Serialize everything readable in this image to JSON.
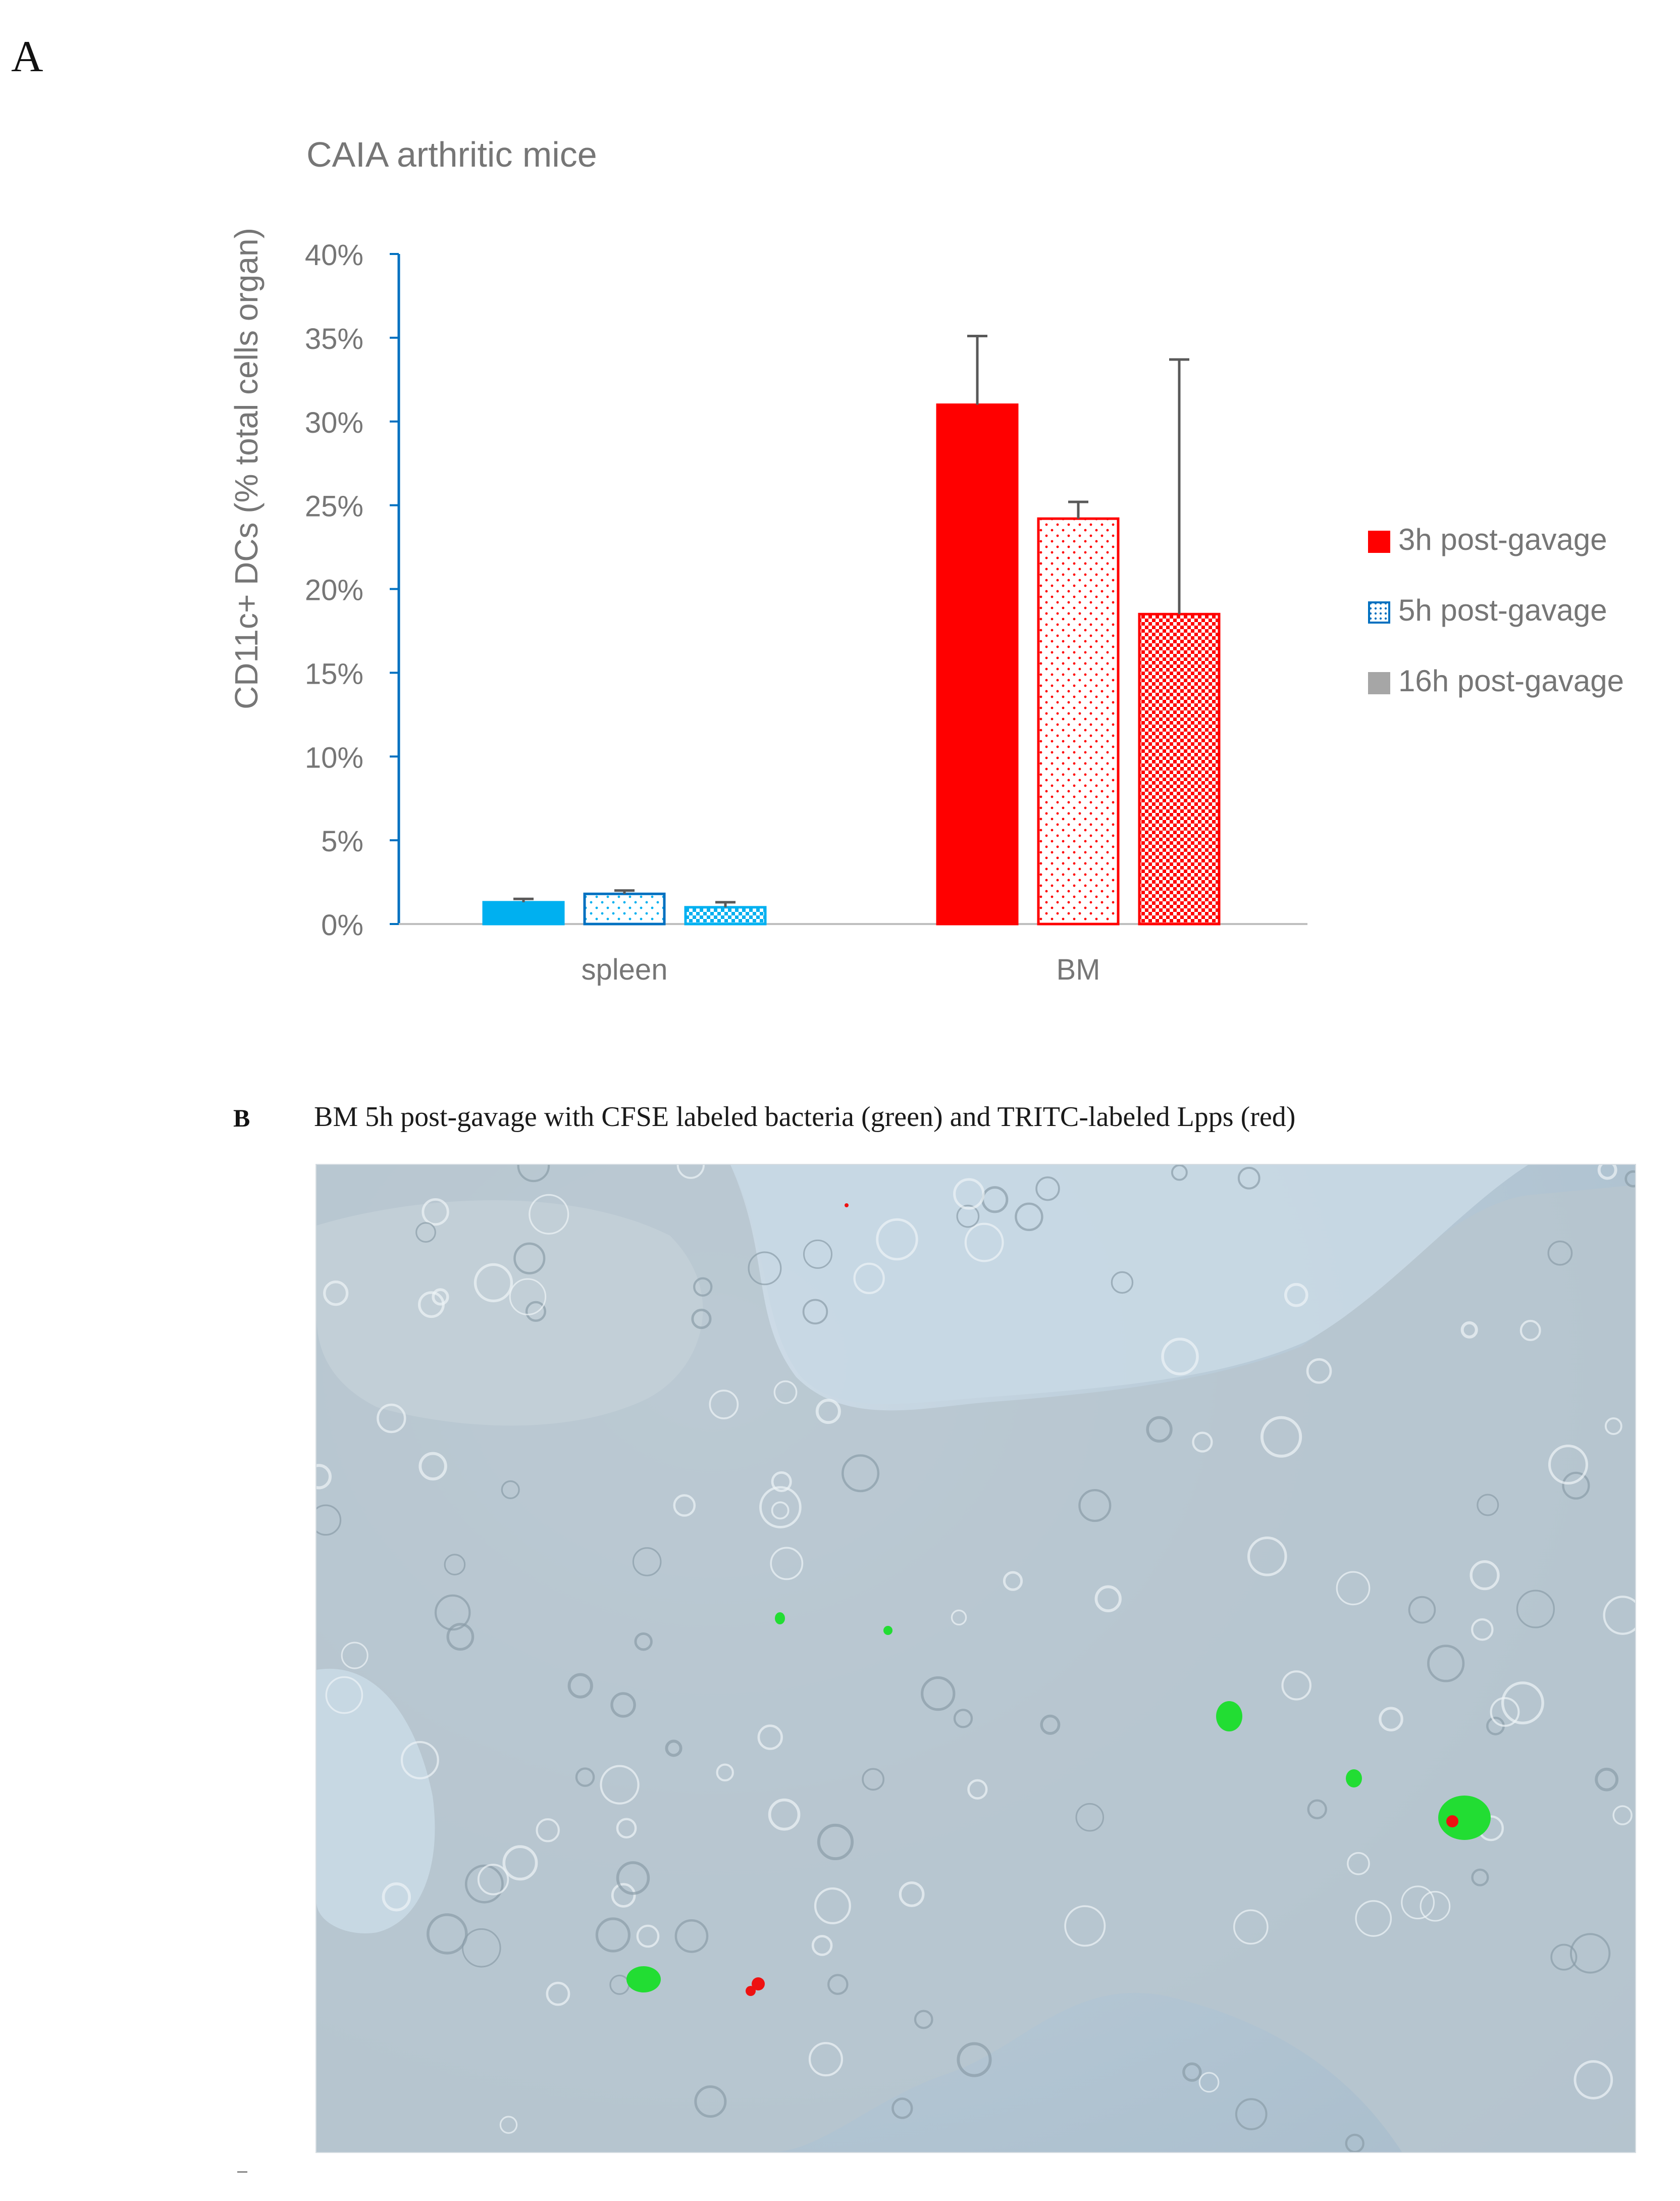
{
  "panel_a": {
    "letter": "A"
  },
  "panel_b": {
    "letter": "B",
    "caption": "BM 5h post-gavage with CFSE labeled bacteria (green) and TRITC-labeled Lpps (red)"
  },
  "colors": {
    "red": "#ff0000",
    "blue": "#0070c0",
    "light_blue": "#00b0f0",
    "axis_text": "#767676",
    "error_bar": "#595959",
    "legend_grey": "#a6a6a6"
  },
  "chart_data": {
    "type": "bar",
    "title": "CAIA arthritic mice",
    "ylabel": "CD11c+ DCs (% total cells organ)",
    "xlabel": "",
    "categories": [
      "spleen",
      "BM"
    ],
    "ylim": [
      0,
      40
    ],
    "yticks": [
      "0%",
      "5%",
      "10%",
      "15%",
      "20%",
      "25%",
      "30%",
      "35%",
      "40%"
    ],
    "series": [
      {
        "name": "3h post-gavage",
        "values": [
          1.3,
          31.0
        ],
        "errors": [
          0.2,
          4.1
        ],
        "pattern": "solid"
      },
      {
        "name": "5h post-gavage",
        "values": [
          1.8,
          24.2
        ],
        "errors": [
          0.2,
          1.0
        ],
        "pattern": "dots"
      },
      {
        "name": "16h post-gavage",
        "values": [
          1.0,
          18.5
        ],
        "errors": [
          0.3,
          15.2
        ],
        "pattern": "cross"
      }
    ],
    "legend_position": "right",
    "grid": false
  }
}
